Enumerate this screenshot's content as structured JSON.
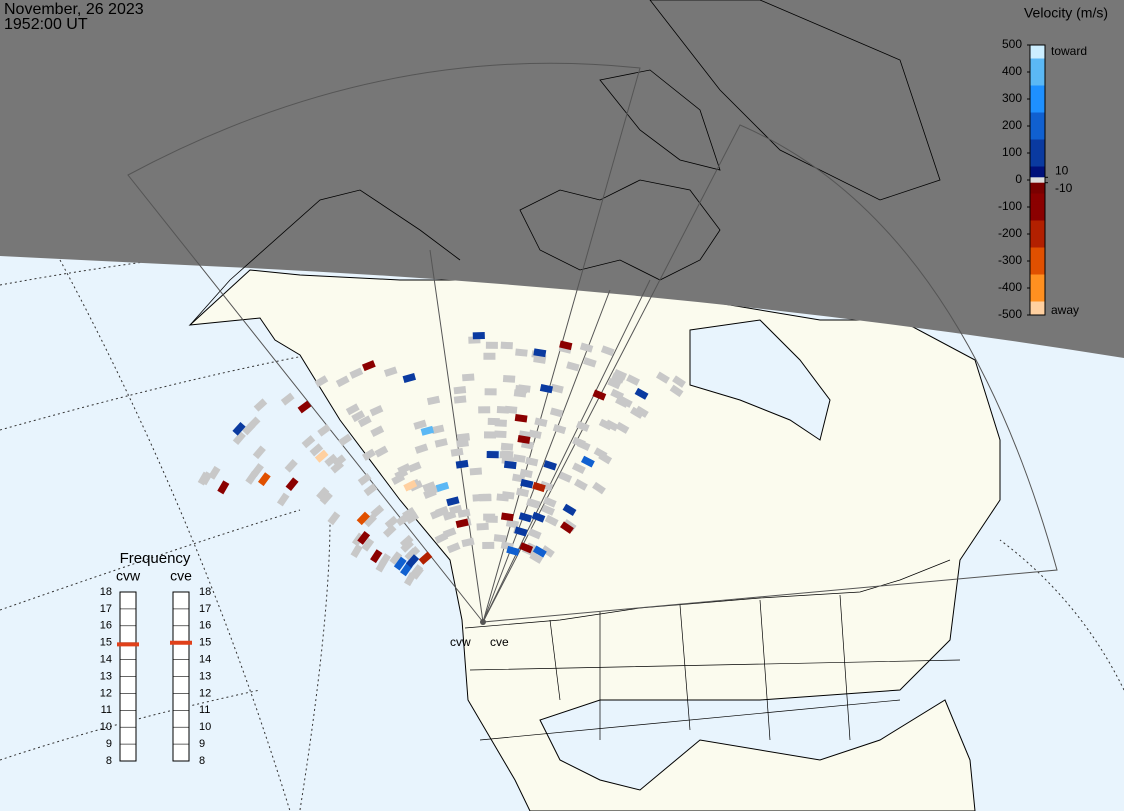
{
  "header": {
    "date": "November, 26 2023",
    "time": "1952:00 UT"
  },
  "colorbar": {
    "title": "Velocity (m/s)",
    "lim": [
      -500,
      500
    ],
    "ticks": [
      500,
      400,
      300,
      200,
      100,
      0,
      -100,
      -200,
      -300,
      -400,
      -500
    ],
    "inner_ticks": [
      10,
      -10
    ],
    "top_label": "toward",
    "bottom_label": "away"
  },
  "frequency": {
    "title": "Frequency",
    "lim": [
      8,
      18
    ],
    "ticks": [
      18,
      17,
      16,
      15,
      14,
      13,
      12,
      11,
      10,
      9,
      8
    ],
    "radars": [
      {
        "name": "cvw",
        "value": 14.9
      },
      {
        "name": "cve",
        "value": 15
      }
    ]
  },
  "scatter": {
    "velocities": [
      120,
      150,
      90,
      -80,
      140,
      110,
      -120,
      60,
      180,
      -60,
      130,
      100,
      -150,
      350,
      -340,
      70,
      160,
      -90,
      120,
      -100,
      80,
      140,
      -70,
      -110,
      110,
      -300,
      500,
      90,
      -130,
      150,
      -450,
      -480,
      120,
      -90,
      -140,
      100,
      -60,
      170,
      -120,
      80,
      -100,
      130,
      -80,
      -150,
      400
    ]
  }
}
